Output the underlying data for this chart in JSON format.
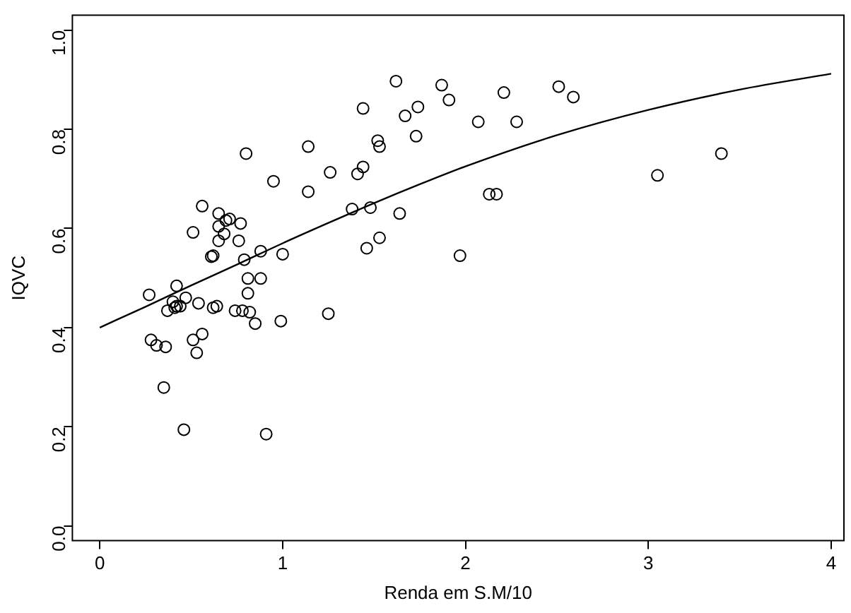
{
  "chart_data": {
    "type": "scatter",
    "xlabel": "Renda em S.M/10",
    "ylabel": "IQVC",
    "xlim": [
      -0.15,
      4.07
    ],
    "ylim": [
      -0.03,
      1.03
    ],
    "xticks": [
      0,
      1,
      2,
      3,
      4
    ],
    "yticks": [
      {
        "value": 0,
        "label": "0.0"
      },
      {
        "value": 0.2,
        "label": "0.2"
      },
      {
        "value": 0.4,
        "label": "0.4"
      },
      {
        "value": 0.6,
        "label": "0.6"
      },
      {
        "value": 0.8,
        "label": "0.8"
      },
      {
        "value": 1,
        "label": "1.0"
      }
    ],
    "grid": false,
    "legend": false,
    "series": [
      {
        "color": "#000000",
        "marker": "circle",
        "x": [
          0.8,
          1.14,
          0.95,
          1.14,
          0.56,
          0.65,
          0.71,
          0.69,
          0.77,
          0.65,
          0.51,
          0.68,
          0.65,
          0.76,
          0.61,
          0.62,
          0.79,
          0.88,
          1.0,
          0.81,
          0.88,
          0.42,
          0.27,
          0.81,
          0.47,
          0.4,
          0.42,
          0.41,
          0.44,
          0.37,
          0.54,
          0.64,
          0.62,
          0.74,
          0.78,
          0.82,
          0.85,
          0.99,
          0.28,
          0.31,
          0.36,
          0.51,
          0.56,
          0.53,
          0.35,
          0.46,
          0.91,
          1.62,
          1.87,
          2.21,
          2.51,
          2.59,
          1.91,
          1.44,
          1.74,
          1.67,
          2.07,
          2.28,
          1.52,
          1.53,
          1.73,
          1.26,
          1.41,
          1.44,
          1.38,
          1.48,
          1.64,
          2.13,
          2.17,
          1.53,
          1.46,
          1.97,
          1.25,
          3.05,
          3.4
        ],
        "values": [
          0.751,
          0.765,
          0.695,
          0.674,
          0.645,
          0.63,
          0.619,
          0.616,
          0.61,
          0.604,
          0.592,
          0.589,
          0.575,
          0.575,
          0.543,
          0.545,
          0.537,
          0.554,
          0.548,
          0.499,
          0.499,
          0.484,
          0.466,
          0.469,
          0.46,
          0.452,
          0.443,
          0.44,
          0.443,
          0.434,
          0.449,
          0.443,
          0.44,
          0.434,
          0.434,
          0.431,
          0.408,
          0.413,
          0.375,
          0.364,
          0.361,
          0.375,
          0.387,
          0.349,
          0.279,
          0.194,
          0.185,
          0.897,
          0.889,
          0.874,
          0.886,
          0.865,
          0.859,
          0.842,
          0.845,
          0.827,
          0.815,
          0.815,
          0.777,
          0.765,
          0.786,
          0.713,
          0.71,
          0.724,
          0.639,
          0.642,
          0.63,
          0.669,
          0.669,
          0.581,
          0.56,
          0.545,
          0.428,
          0.707,
          0.751
        ]
      },
      {
        "type": "line",
        "color": "#000000",
        "marker": "none",
        "line_style": "solid",
        "x": [
          0,
          0.25,
          0.5,
          0.75,
          1,
          1.25,
          1.5,
          1.75,
          2,
          2.5,
          3,
          3.5,
          4
        ],
        "values": [
          0.4,
          0.442,
          0.485,
          0.527,
          0.57,
          0.611,
          0.651,
          0.689,
          0.725,
          0.788,
          0.839,
          0.88,
          0.912
        ]
      }
    ]
  }
}
